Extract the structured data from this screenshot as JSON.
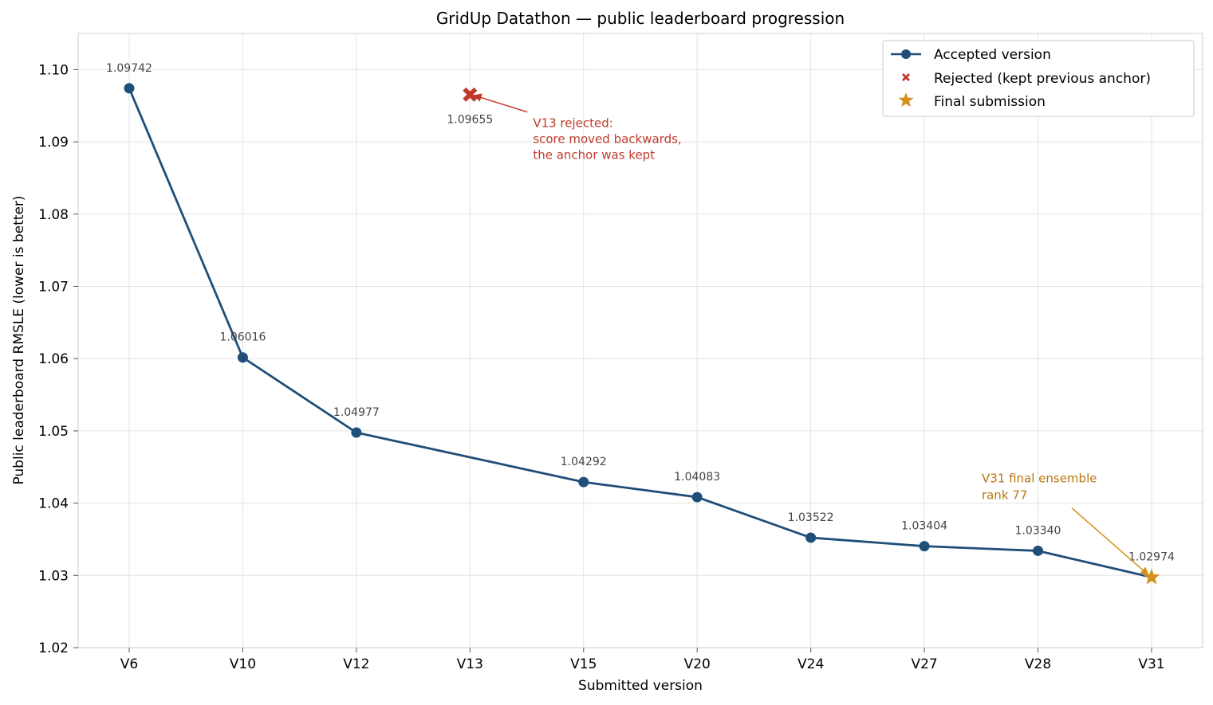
{
  "chart_data": {
    "type": "line",
    "title": "GridUp Datathon — public leaderboard progression",
    "xlabel": "Submitted version",
    "ylabel": "Public leaderboard RMSLE (lower is better)",
    "categories": [
      "V6",
      "V10",
      "V12",
      "V13",
      "V15",
      "V20",
      "V24",
      "V27",
      "V28",
      "V31"
    ],
    "ylim": [
      1.02,
      1.105
    ],
    "yticks": [
      "1.02",
      "1.03",
      "1.04",
      "1.05",
      "1.06",
      "1.07",
      "1.08",
      "1.09",
      "1.10"
    ],
    "grid": true,
    "legend_position": "top-right",
    "series": [
      {
        "name": "Accepted version",
        "color": "#1f4e79",
        "points": [
          {
            "x": "V6",
            "y": 1.09742,
            "label": "1.09742"
          },
          {
            "x": "V10",
            "y": 1.06016,
            "label": "1.06016"
          },
          {
            "x": "V12",
            "y": 1.04977,
            "label": "1.04977"
          },
          {
            "x": "V15",
            "y": 1.04292,
            "label": "1.04292"
          },
          {
            "x": "V20",
            "y": 1.04083,
            "label": "1.04083"
          },
          {
            "x": "V24",
            "y": 1.03522,
            "label": "1.03522"
          },
          {
            "x": "V27",
            "y": 1.03404,
            "label": "1.03404"
          },
          {
            "x": "V28",
            "y": 1.0334,
            "label": "1.03340"
          },
          {
            "x": "V31",
            "y": 1.02974,
            "label": "1.02974"
          }
        ]
      },
      {
        "name": "Rejected (kept previous anchor)",
        "color": "#c0392b",
        "points": [
          {
            "x": "V13",
            "y": 1.09655,
            "label": "1.09655"
          }
        ]
      },
      {
        "name": "Final submission",
        "color": "#d4901c",
        "points": [
          {
            "x": "V31",
            "y": 1.02974
          }
        ]
      }
    ],
    "annotations": [
      {
        "lines": [
          "V13 rejected:",
          "score moved backwards,",
          "the anchor was kept"
        ],
        "color": "#c0392b",
        "target": {
          "x": "V13",
          "y": 1.09655
        }
      },
      {
        "lines": [
          "V31 final ensemble",
          "rank 77"
        ],
        "color": "#b8760f",
        "target": {
          "x": "V31",
          "y": 1.02974
        }
      }
    ]
  }
}
